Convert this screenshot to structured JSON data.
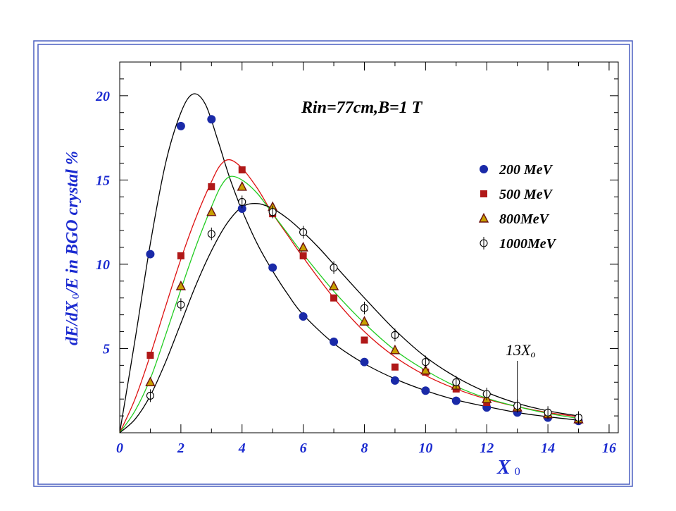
{
  "chart_data": {
    "type": "scatter",
    "title": "",
    "annotation": "Rin=77cm,B=1 T",
    "marker_label": "13X",
    "marker_label_sub": "o",
    "marker_x": 13,
    "ylabel_pre": "dE/dX",
    "ylabel_sub": "0",
    "ylabel_post": "/E  in BGO crystal  %",
    "xlabel_main": "X",
    "xlabel_sub": "0",
    "xlim": [
      0,
      16.3
    ],
    "ylim": [
      0,
      22
    ],
    "x_ticks": [
      "0",
      "2",
      "4",
      "6",
      "8",
      "10",
      "12",
      "14",
      "16"
    ],
    "y_ticks": [
      "5",
      "10",
      "15",
      "20"
    ],
    "legend_position": "right",
    "grid": false,
    "series": [
      {
        "name": "200 MeV",
        "marker": "circle",
        "color": "#1a2aa8",
        "x": [
          1,
          2,
          3,
          4,
          5,
          6,
          7,
          8,
          9,
          10,
          11,
          12,
          13,
          14,
          15
        ],
        "y": [
          10.6,
          18.2,
          18.6,
          13.3,
          9.8,
          6.9,
          5.4,
          4.2,
          3.1,
          2.5,
          1.9,
          1.5,
          1.2,
          0.9,
          0.7
        ],
        "curve_x": [
          0,
          0.5,
          1,
          1.5,
          2,
          2.4,
          2.8,
          3.2,
          3.6,
          4,
          4.5,
          5,
          5.5,
          6,
          7,
          8,
          9,
          10,
          11,
          12,
          13,
          14,
          15
        ],
        "curve_y": [
          0,
          5.5,
          11.2,
          16.0,
          19.0,
          20.1,
          19.5,
          17.4,
          15.1,
          13.2,
          11.2,
          9.6,
          8.2,
          7.0,
          5.3,
          4.1,
          3.2,
          2.5,
          1.95,
          1.55,
          1.2,
          0.95,
          0.75
        ],
        "curve_color": "#000000"
      },
      {
        "name": "500 MeV",
        "marker": "square",
        "color": "#b01818",
        "x": [
          1,
          2,
          3,
          4,
          5,
          6,
          7,
          8,
          9,
          10,
          11,
          12,
          13,
          14,
          15
        ],
        "y": [
          4.6,
          10.5,
          14.6,
          15.6,
          13.0,
          10.5,
          8.0,
          5.5,
          3.9,
          3.6,
          2.6,
          1.8,
          1.5,
          1.1,
          0.8
        ],
        "curve_x": [
          0,
          0.5,
          1,
          1.5,
          2,
          2.5,
          3,
          3.3,
          3.6,
          4,
          4.5,
          5,
          5.5,
          6,
          7,
          8,
          9,
          10,
          11,
          12,
          13,
          14,
          15
        ],
        "curve_y": [
          0,
          2.0,
          4.6,
          7.5,
          10.3,
          12.8,
          14.9,
          15.9,
          16.2,
          15.7,
          14.5,
          13.0,
          11.7,
          10.4,
          8.0,
          6.0,
          4.5,
          3.4,
          2.6,
          2.0,
          1.55,
          1.2,
          0.95
        ],
        "curve_color": "#dd1111"
      },
      {
        "name": "800MeV",
        "marker": "triangle",
        "color": "#c8a000",
        "x": [
          1,
          2,
          3,
          4,
          5,
          6,
          7,
          8,
          9,
          10,
          11,
          12,
          13,
          14,
          15
        ],
        "y": [
          3.0,
          8.7,
          13.1,
          14.6,
          13.4,
          11.0,
          8.7,
          6.6,
          4.9,
          3.7,
          2.8,
          2.0,
          1.5,
          1.1,
          0.8
        ],
        "curve_x": [
          0,
          0.5,
          1,
          1.5,
          2,
          2.5,
          3,
          3.3,
          3.6,
          4,
          4.5,
          5,
          5.5,
          6,
          7,
          8,
          9,
          10,
          11,
          12,
          13,
          14,
          15
        ],
        "curve_y": [
          0,
          1.3,
          3.2,
          5.8,
          8.5,
          11.1,
          13.4,
          14.6,
          15.2,
          15.0,
          14.2,
          13.0,
          11.8,
          10.6,
          8.4,
          6.5,
          4.9,
          3.7,
          2.75,
          2.05,
          1.55,
          1.15,
          0.85
        ],
        "curve_color": "#22cc22"
      },
      {
        "name": "1000MeV",
        "marker": "open-circle",
        "color": "#000000",
        "x": [
          1,
          2,
          3,
          4,
          5,
          6,
          7,
          8,
          9,
          10,
          11,
          12,
          13,
          14,
          15
        ],
        "y": [
          2.2,
          7.6,
          11.8,
          13.7,
          13.1,
          11.9,
          9.8,
          7.4,
          5.8,
          4.2,
          3.0,
          2.3,
          1.6,
          1.2,
          0.9
        ],
        "curve_x": [
          0,
          0.5,
          1,
          1.5,
          2,
          2.5,
          3,
          3.5,
          4,
          4.5,
          5,
          5.5,
          6,
          6.5,
          7,
          8,
          9,
          10,
          11,
          12,
          13,
          14,
          15
        ],
        "curve_y": [
          0,
          0.8,
          2.2,
          4.2,
          6.5,
          8.8,
          10.8,
          12.4,
          13.4,
          13.6,
          13.3,
          12.7,
          11.9,
          11.0,
          10.0,
          8.0,
          6.1,
          4.5,
          3.3,
          2.4,
          1.75,
          1.3,
          1.0
        ],
        "curve_color": "#000000"
      }
    ]
  }
}
